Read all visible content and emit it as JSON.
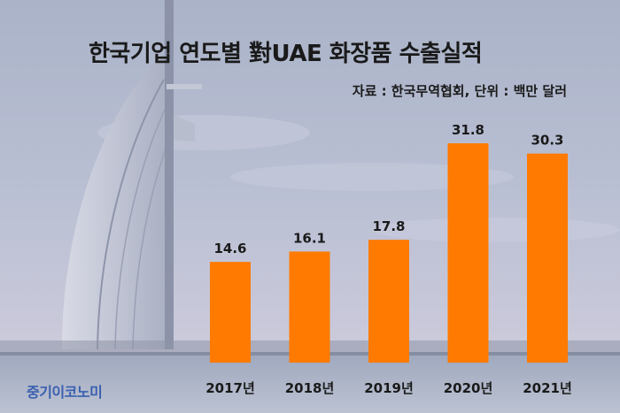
{
  "header": {
    "title": "한국기업 연도별 對UAE 화장품 수출실적",
    "source": "자료 : 한국무역협회, 단위 : 백만 달러"
  },
  "logo": {
    "text": "중기이코노미"
  },
  "colors": {
    "bar": "#FF7A00",
    "text": "#1a1a1a"
  },
  "chart_data": {
    "type": "bar",
    "title": "한국기업 연도별 對UAE 화장품 수출실적",
    "xlabel": "",
    "ylabel": "",
    "categories": [
      "2017년",
      "2018년",
      "2019년",
      "2020년",
      "2021년"
    ],
    "values": [
      14.6,
      16.1,
      17.8,
      31.8,
      30.3
    ],
    "ylim": [
      0,
      31.8
    ],
    "grid": false,
    "legend": "none"
  }
}
